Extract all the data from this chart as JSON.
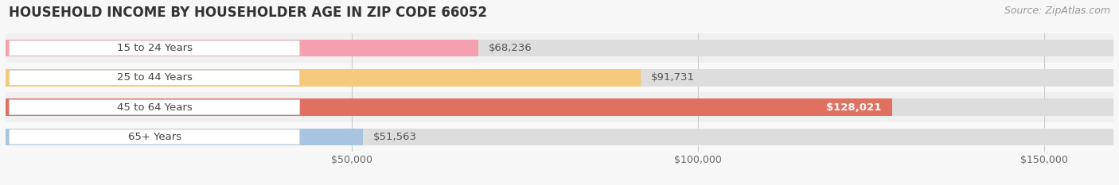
{
  "title": "HOUSEHOLD INCOME BY HOUSEHOLDER AGE IN ZIP CODE 66052",
  "source": "Source: ZipAtlas.com",
  "categories": [
    "15 to 24 Years",
    "25 to 44 Years",
    "45 to 64 Years",
    "65+ Years"
  ],
  "values": [
    68236,
    91731,
    128021,
    51563
  ],
  "colors": [
    "#f4a0b0",
    "#f5c97a",
    "#e07060",
    "#a8c4e0"
  ],
  "xlim": [
    0,
    160000
  ],
  "xticks": [
    50000,
    100000,
    150000
  ],
  "xtick_labels": [
    "$50,000",
    "$100,000",
    "$150,000"
  ],
  "value_labels": [
    "$68,236",
    "$91,731",
    "$128,021",
    "$51,563"
  ],
  "label_inside": [
    false,
    false,
    true,
    false
  ],
  "bg_color": "#f7f7f7",
  "row_bg_colors": [
    "#f0f0f0",
    "#f8f8f8",
    "#f0f0f0",
    "#f8f8f8"
  ],
  "title_fontsize": 12,
  "source_fontsize": 9,
  "bar_height": 0.58,
  "bar_label_fontsize": 9.5
}
